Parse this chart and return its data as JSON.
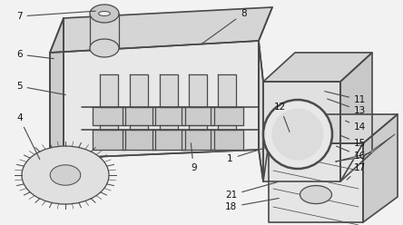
{
  "bg_color": "#f2f2f2",
  "line_color": "#4a4a4a",
  "lw": 0.9,
  "lw2": 1.2,
  "face_main": "#e8e8e8",
  "face_top": "#d5d5d5",
  "face_side": "#cccccc",
  "face_right_box": "#e2e2e2",
  "face_lower_box": "#e5e5e5"
}
